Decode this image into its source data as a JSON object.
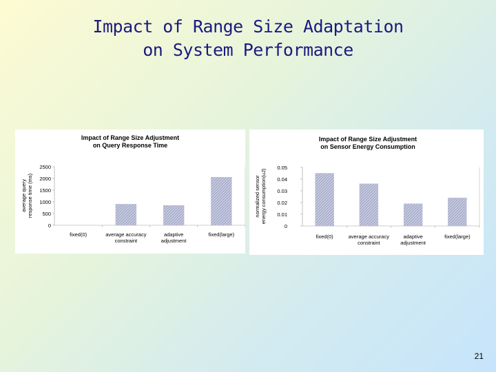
{
  "slide": {
    "title_line1": "Impact of Range Size Adaptation",
    "title_line2": "on System Performance",
    "page_number": "21"
  },
  "colors": {
    "bar_fill": "#c7cbe0",
    "bar_hatch": "#8b90b5",
    "title_text": "#1a1a80"
  },
  "chart_data": [
    {
      "type": "bar",
      "title": "Impact of Range Size Adjustment\non Query Response Time",
      "title_lines": [
        "Impact of Range Size Adjustment",
        "on Query Response Time"
      ],
      "ylabel": "average query\nresponse time (ms)",
      "ylabel_lines": [
        "average query",
        "response time (ms)"
      ],
      "xlabel": "",
      "categories": [
        "fixed(0)",
        "average accuracy constraint",
        "adaptive adjustment",
        "fixed(large)"
      ],
      "category_lines": [
        [
          "fixed(0)"
        ],
        [
          "average accuracy",
          "constraint"
        ],
        [
          "adaptive",
          "adjustment"
        ],
        [
          "fixed(large)"
        ]
      ],
      "values": [
        0,
        900,
        850,
        2050
      ],
      "ylim": [
        0,
        2500
      ],
      "yticks": [
        0,
        500,
        1000,
        1500,
        2000,
        2500
      ],
      "ytick_labels": [
        "0",
        "500",
        "1000",
        "1500",
        "2000",
        "2500"
      ],
      "grid": false
    },
    {
      "type": "bar",
      "title": "Impact of Range Size Adjustment\non Sensor Energy Consumption",
      "title_lines": [
        "Impact of Range Size Adjustment",
        "on Sensor Energy Consumption"
      ],
      "ylabel": "normalized sensor\nenergy consumption(uJ)",
      "ylabel_lines": [
        "normalized sensor",
        "energy consumption(uJ)"
      ],
      "xlabel": "",
      "categories": [
        "fixed(0)",
        "average accuracy constraint",
        "adaptive adjustment",
        "fixed(large)"
      ],
      "category_lines": [
        [
          "fixed(0)"
        ],
        [
          "average accuracy",
          "constraint"
        ],
        [
          "adaptive",
          "adjustment"
        ],
        [
          "fixed(large)"
        ]
      ],
      "values": [
        0.045,
        0.036,
        0.019,
        0.024
      ],
      "ylim": [
        0,
        0.05
      ],
      "yticks": [
        0,
        0.01,
        0.02,
        0.03,
        0.04,
        0.05
      ],
      "ytick_labels": [
        "0",
        "0.01",
        "0.02",
        "0.03",
        "0.04",
        "0.05"
      ],
      "grid": false
    }
  ]
}
